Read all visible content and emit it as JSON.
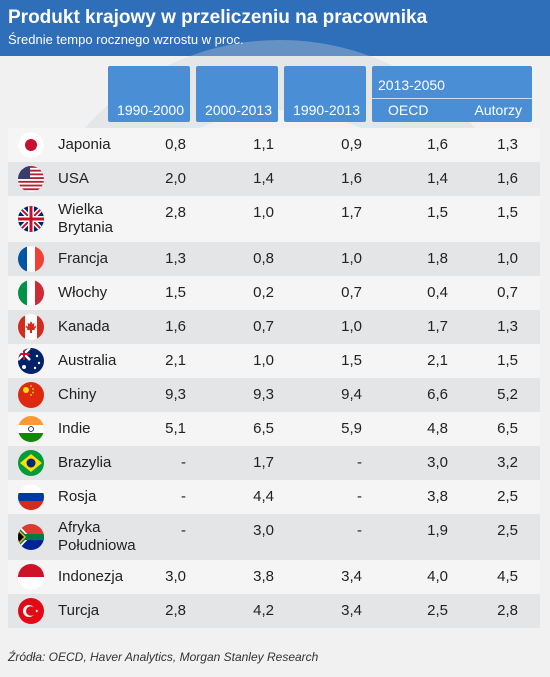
{
  "header": {
    "title": "Produkt krajowy w przeliczeniu na pracownika",
    "subtitle": "Średnie tempo rocznego wzrostu w proc."
  },
  "columns": {
    "c1": "1990-2000",
    "c2": "2000-2013",
    "c3": "1990-2013",
    "group": "2013-2050",
    "c4": "OECD",
    "c5": "Autorzy"
  },
  "chart_data": {
    "type": "table",
    "title": "Produkt krajowy w przeliczeniu na pracownika",
    "subtitle": "Średnie tempo rocznego wzrostu w proc.",
    "columns": [
      "1990-2000",
      "2000-2013",
      "1990-2013",
      "OECD",
      "Autorzy"
    ],
    "column_group": {
      "label": "2013-2050",
      "spans": [
        "OECD",
        "Autorzy"
      ]
    },
    "rows": [
      {
        "country": "Japonia",
        "flag": "japan-flag-icon",
        "values": [
          "0,8",
          "1,1",
          "0,9",
          "1,6",
          "1,3"
        ]
      },
      {
        "country": "USA",
        "flag": "usa-flag-icon",
        "values": [
          "2,0",
          "1,4",
          "1,6",
          "1,4",
          "1,6"
        ]
      },
      {
        "country": "Wielka Brytania",
        "flag": "uk-flag-icon",
        "values": [
          "2,8",
          "1,0",
          "1,7",
          "1,5",
          "1,5"
        ]
      },
      {
        "country": "Francja",
        "flag": "france-flag-icon",
        "values": [
          "1,3",
          "0,8",
          "1,0",
          "1,8",
          "1,0"
        ]
      },
      {
        "country": "Włochy",
        "flag": "italy-flag-icon",
        "values": [
          "1,5",
          "0,2",
          "0,7",
          "0,4",
          "0,7"
        ]
      },
      {
        "country": "Kanada",
        "flag": "canada-flag-icon",
        "values": [
          "1,6",
          "0,7",
          "1,0",
          "1,7",
          "1,3"
        ]
      },
      {
        "country": "Australia",
        "flag": "australia-flag-icon",
        "values": [
          "2,1",
          "1,0",
          "1,5",
          "2,1",
          "1,5"
        ]
      },
      {
        "country": "Chiny",
        "flag": "china-flag-icon",
        "values": [
          "9,3",
          "9,3",
          "9,4",
          "6,6",
          "5,2"
        ]
      },
      {
        "country": "Indie",
        "flag": "india-flag-icon",
        "values": [
          "5,1",
          "6,5",
          "5,9",
          "4,8",
          "6,5"
        ]
      },
      {
        "country": "Brazylia",
        "flag": "brazil-flag-icon",
        "values": [
          "-",
          "1,7",
          "-",
          "3,0",
          "3,2"
        ]
      },
      {
        "country": "Rosja",
        "flag": "russia-flag-icon",
        "values": [
          "-",
          "4,4",
          "-",
          "3,8",
          "2,5"
        ]
      },
      {
        "country": "Afryka Południowa",
        "flag": "south-africa-flag-icon",
        "values": [
          "-",
          "3,0",
          "-",
          "1,9",
          "2,5"
        ]
      },
      {
        "country": "Indonezja",
        "flag": "indonesia-flag-icon",
        "values": [
          "3,0",
          "3,8",
          "3,4",
          "4,0",
          "4,5"
        ]
      },
      {
        "country": "Turcja",
        "flag": "turkey-flag-icon",
        "values": [
          "2,8",
          "4,2",
          "3,4",
          "2,5",
          "2,8"
        ]
      }
    ]
  },
  "rows": [
    {
      "name_lines": [
        "Japonia"
      ],
      "values": [
        "0,8",
        "1,1",
        "0,9",
        "1,6",
        "1,3"
      ]
    },
    {
      "name_lines": [
        "USA"
      ],
      "values": [
        "2,0",
        "1,4",
        "1,6",
        "1,4",
        "1,6"
      ]
    },
    {
      "name_lines": [
        "Wielka",
        "Brytania"
      ],
      "values": [
        "2,8",
        "1,0",
        "1,7",
        "1,5",
        "1,5"
      ]
    },
    {
      "name_lines": [
        "Francja"
      ],
      "values": [
        "1,3",
        "0,8",
        "1,0",
        "1,8",
        "1,0"
      ]
    },
    {
      "name_lines": [
        "Włochy"
      ],
      "values": [
        "1,5",
        "0,2",
        "0,7",
        "0,4",
        "0,7"
      ]
    },
    {
      "name_lines": [
        "Kanada"
      ],
      "values": [
        "1,6",
        "0,7",
        "1,0",
        "1,7",
        "1,3"
      ]
    },
    {
      "name_lines": [
        "Australia"
      ],
      "values": [
        "2,1",
        "1,0",
        "1,5",
        "2,1",
        "1,5"
      ]
    },
    {
      "name_lines": [
        "Chiny"
      ],
      "values": [
        "9,3",
        "9,3",
        "9,4",
        "6,6",
        "5,2"
      ]
    },
    {
      "name_lines": [
        "Indie"
      ],
      "values": [
        "5,1",
        "6,5",
        "5,9",
        "4,8",
        "6,5"
      ]
    },
    {
      "name_lines": [
        "Brazylia"
      ],
      "values": [
        "-",
        "1,7",
        "-",
        "3,0",
        "3,2"
      ]
    },
    {
      "name_lines": [
        "Rosja"
      ],
      "values": [
        "-",
        "4,4",
        "-",
        "3,8",
        "2,5"
      ]
    },
    {
      "name_lines": [
        "Afryka",
        "Południowa"
      ],
      "values": [
        "-",
        "3,0",
        "-",
        "1,9",
        "2,5"
      ]
    },
    {
      "name_lines": [
        "Indonezja"
      ],
      "values": [
        "3,0",
        "3,8",
        "3,4",
        "4,0",
        "4,5"
      ]
    },
    {
      "name_lines": [
        "Turcja"
      ],
      "values": [
        "2,8",
        "4,2",
        "3,4",
        "2,5",
        "2,8"
      ]
    }
  ],
  "source": "Źródła: OECD, Haver Analytics, Morgan Stanley Research",
  "colors": {
    "header_bg": "#2f6fb9",
    "column_header_bg": "#4a8fd6",
    "row_light": "#f5f5f6",
    "row_dark": "#e4e5e7"
  }
}
